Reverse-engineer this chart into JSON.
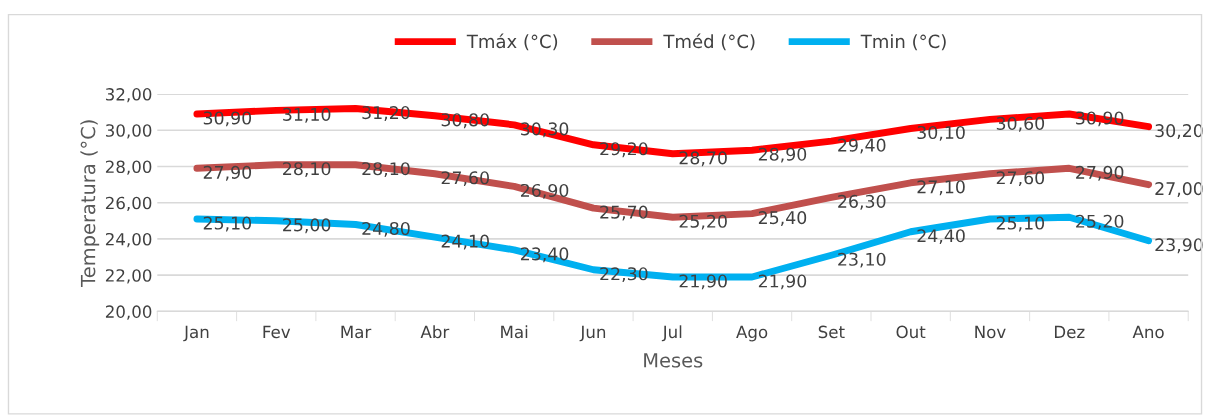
{
  "chart_data": {
    "type": "line",
    "xlabel": "Meses",
    "ylabel": "Temperatura (°C)",
    "categories": [
      "Jan",
      "Fev",
      "Mar",
      "Abr",
      "Mai",
      "Jun",
      "Jul",
      "Ago",
      "Set",
      "Out",
      "Nov",
      "Dez",
      "Ano"
    ],
    "series": [
      {
        "name": "Tmáx (°C)",
        "color": "#ff0000",
        "values": [
          30.9,
          31.1,
          31.2,
          30.8,
          30.3,
          29.2,
          28.7,
          28.9,
          29.4,
          30.1,
          30.6,
          30.9,
          30.2
        ],
        "value_labels": [
          "30,90",
          "31,10",
          "31,20",
          "30,80",
          "30,30",
          "29,20",
          "28,70",
          "28,90",
          "29,40",
          "30,10",
          "30,60",
          "30,90",
          "30,20"
        ]
      },
      {
        "name": "Tméd (°C)",
        "color": "#c0504d",
        "values": [
          27.9,
          28.1,
          28.1,
          27.6,
          26.9,
          25.7,
          25.2,
          25.4,
          26.3,
          27.1,
          27.6,
          27.9,
          27.0
        ],
        "value_labels": [
          "27,90",
          "28,10",
          "28,10",
          "27,60",
          "26,90",
          "25,70",
          "25,20",
          "25,40",
          "26,30",
          "27,10",
          "27,60",
          "27,90",
          "27,00"
        ]
      },
      {
        "name": "Tmin (°C)",
        "color": "#00b0f0",
        "values": [
          25.1,
          25.0,
          24.8,
          24.1,
          23.4,
          22.3,
          21.9,
          21.9,
          23.1,
          24.4,
          25.1,
          25.2,
          23.9
        ],
        "value_labels": [
          "25,10",
          "25,00",
          "24,80",
          "24,10",
          "23,40",
          "22,30",
          "21,90",
          "21,90",
          "23,10",
          "24,40",
          "25,10",
          "25,20",
          "23,90"
        ]
      }
    ],
    "ylim": [
      20,
      32
    ],
    "yticks": [
      {
        "value": 20,
        "label": "20,00"
      },
      {
        "value": 22,
        "label": "22,00"
      },
      {
        "value": 24,
        "label": "24,00"
      },
      {
        "value": 26,
        "label": "26,00"
      },
      {
        "value": 28,
        "label": "28,00"
      },
      {
        "value": 30,
        "label": "30,00"
      },
      {
        "value": 32,
        "label": "32,00"
      }
    ],
    "grid": "y",
    "legend": "top",
    "marker": "none",
    "line_style": "solid"
  }
}
